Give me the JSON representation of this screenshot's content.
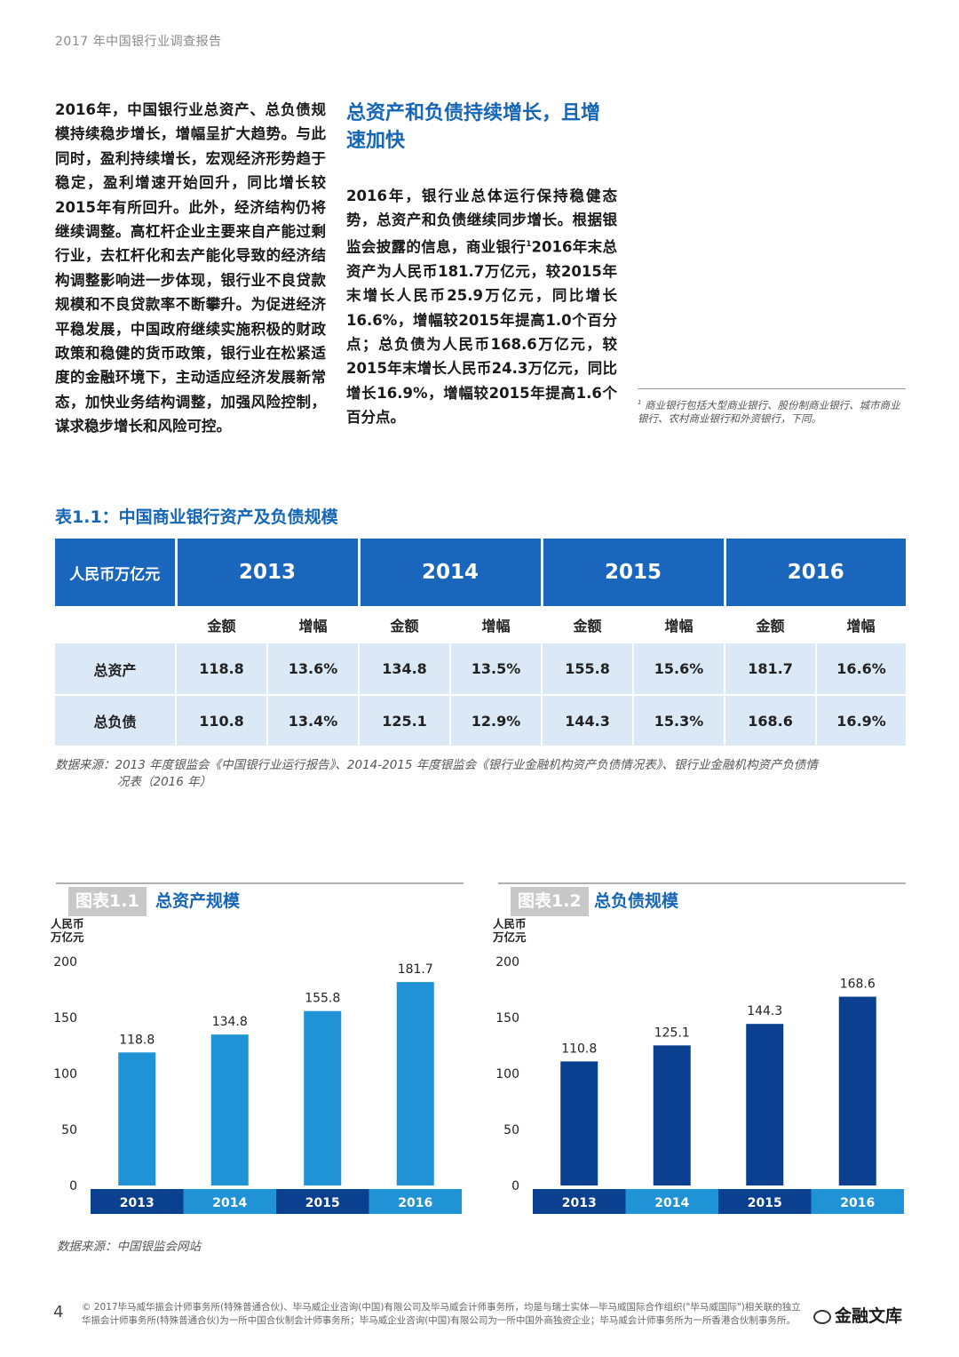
{
  "header": {
    "running_title": "2017 年中国银行业调查报告"
  },
  "left_column": {
    "paragraph": "2016年，中国银行业总资产、总负债规模持续稳步增长，增幅呈扩大趋势。与此同时，盈利持续增长，宏观经济形势趋于稳定，盈利增速开始回升，同比增长较2015年有所回升。此外，经济结构仍将继续调整。高杠杆企业主要来自产能过剩行业，去杠杆化和去产能化导致的经济结构调整影响进一步体现，银行业不良贷款规模和不良贷款率不断攀升。为促进经济平稳发展，中国政府继续实施积极的财政政策和稳健的货币政策，银行业在松紧适度的金融环境下，主动适应经济发展新常态，加快业务结构调整，加强风险控制，谋求稳步增长和风险可控。"
  },
  "mid_column": {
    "title": "总资产和负债持续增长，且增速加快",
    "para_before_sup": "2016年，银行业总体运行保持稳健态势，总资产和负债继续同步增长。根据银监会披露的信息，商业银行",
    "sup": "1",
    "para_after_sup": "2016年末总资产为人民币181.7万亿元，较2015年末增长人民币25.9万亿元，同比增长16.6%，增幅较2015年提高1.0个百分点；总负债为人民币168.6万亿元，较2015年末增长人民币24.3万亿元，同比增长16.9%，增幅较2015年提高1.6个百分点。"
  },
  "footnote": {
    "sup": "1",
    "text": "商业银行包括大型商业银行、股份制商业银行、城市商业银行、农村商业银行和外资银行，下同。"
  },
  "table": {
    "title": "表1.1：中国商业银行资产及负债规模",
    "unit_header": "人民币万亿元",
    "years": [
      "2013",
      "2014",
      "2015",
      "2016"
    ],
    "sub_headers": [
      "金额",
      "增幅"
    ],
    "rows": [
      {
        "label": "总资产",
        "cells": [
          "118.8",
          "13.6%",
          "134.8",
          "13.5%",
          "155.8",
          "15.6%",
          "181.7",
          "16.6%"
        ]
      },
      {
        "label": "总负债",
        "cells": [
          "110.8",
          "13.4%",
          "125.1",
          "12.9%",
          "144.3",
          "15.3%",
          "168.6",
          "16.9%"
        ]
      }
    ],
    "source_line1": "数据来源：2013 年度银监会《中国银行业运行报告》、2014-2015 年度银监会《银行业金融机构资产负债情况表》、银行业金融机构资产负债情",
    "source_line2": "况表（2016 年）"
  },
  "chart_data": [
    {
      "type": "bar",
      "badge": "图表1.1",
      "title": "总资产规模",
      "ylabel_line1": "人民币",
      "ylabel_line2": "万亿元",
      "categories": [
        "2013",
        "2014",
        "2015",
        "2016"
      ],
      "values": [
        118.8,
        134.8,
        155.8,
        181.7
      ],
      "ylim": [
        0,
        200
      ],
      "yticks": [
        0,
        50,
        100,
        150,
        200
      ],
      "bar_color": "#1f93d6",
      "band_colors": [
        "#0b3f8f",
        "#1f93d6",
        "#0b3f8f",
        "#1f93d6"
      ],
      "grid": false
    },
    {
      "type": "bar",
      "badge": "图表1.2",
      "title": "总负债规模",
      "ylabel_line1": "人民币",
      "ylabel_line2": "万亿元",
      "categories": [
        "2013",
        "2014",
        "2015",
        "2016"
      ],
      "values": [
        110.8,
        125.1,
        144.3,
        168.6
      ],
      "ylim": [
        0,
        200
      ],
      "yticks": [
        0,
        50,
        100,
        150,
        200
      ],
      "bar_color": "#0b3f8f",
      "band_colors": [
        "#0b3f8f",
        "#1f93d6",
        "#0b3f8f",
        "#1f93d6"
      ],
      "grid": false
    }
  ],
  "chart_source": "数据来源：中国银监会网站",
  "footer": {
    "page_number": "4",
    "copyright_line1": "© 2017毕马威华振会计师事务所(特殊普通合伙)、毕马威企业咨询(中国)有限公司及毕马威会计师事务所，均是与瑞士实体—毕马威国际合作组织(\"毕马威国际\")相关联的独立",
    "copyright_line2": "华振会计师事务所(特殊普通合伙)为一所中国合伙制会计师事务所；毕马威企业咨询(中国)有限公司为一所中国外商独资企业；毕马威会计师事务所为一所香港合伙制事务所。",
    "watermark": "金融文库"
  },
  "colors": {
    "accent": "#1666b8",
    "table_header": "#1a66bd",
    "table_row": "#dbe8f6"
  }
}
